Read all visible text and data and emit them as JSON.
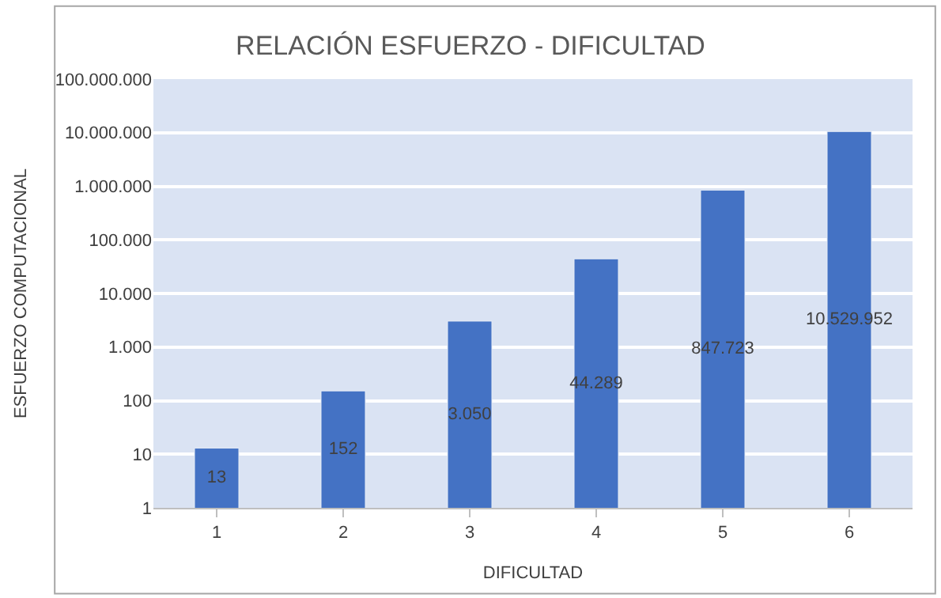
{
  "chart_data": {
    "type": "bar",
    "title": "RELACIÓN ESFUERZO - DIFICULTAD",
    "xlabel": "DIFICULTAD",
    "ylabel": "ESFUERZO COMPUTACIONAL",
    "categories": [
      "1",
      "2",
      "3",
      "4",
      "5",
      "6"
    ],
    "values": [
      13,
      152,
      3050,
      44289,
      847723,
      10529952
    ],
    "value_labels": [
      "13",
      "152",
      "3.050",
      "44.289",
      "847.723",
      "10.529.952"
    ],
    "color": "#4472c4",
    "log": true,
    "ylim": [
      1,
      100000000
    ],
    "yticks": [
      {
        "value": 1,
        "label": "1"
      },
      {
        "value": 10,
        "label": "10"
      },
      {
        "value": 100,
        "label": "100"
      },
      {
        "value": 1000,
        "label": "1.000"
      },
      {
        "value": 10000,
        "label": "10.000"
      },
      {
        "value": 100000,
        "label": "100.000"
      },
      {
        "value": 1000000,
        "label": "1.000.000"
      },
      {
        "value": 10000000,
        "label": "10.000.000"
      },
      {
        "value": 100000000,
        "label": "100.000.000"
      }
    ],
    "grid": "y",
    "legend": false
  }
}
